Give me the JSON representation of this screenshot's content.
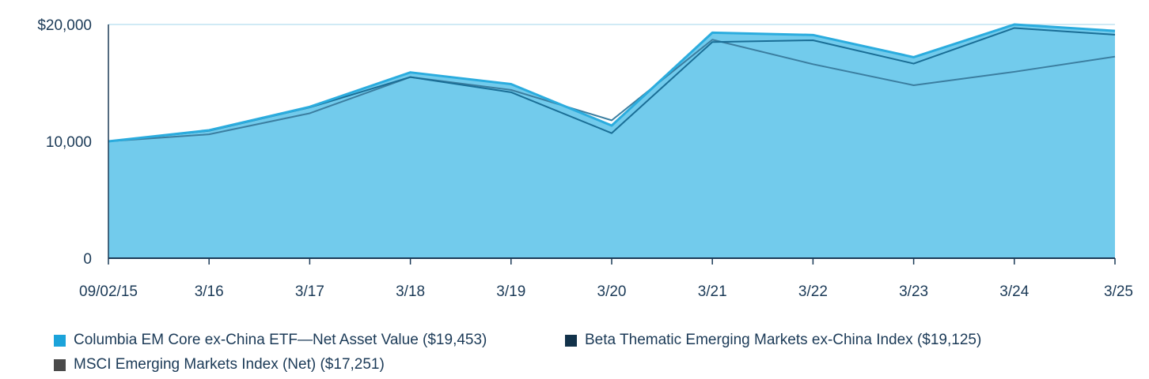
{
  "chart_data": {
    "type": "area",
    "categories": [
      "09/02/15",
      "3/16",
      "3/17",
      "3/18",
      "3/19",
      "3/20",
      "3/21",
      "3/22",
      "3/23",
      "3/24",
      "3/25"
    ],
    "y_tick_labels": [
      "0",
      "10,000",
      "$20,000"
    ],
    "y_ticks": [
      0,
      10000,
      20000
    ],
    "ylim": [
      0,
      20000
    ],
    "grid": "horizontal at 10,000 and 20,000",
    "legend_position": "bottom",
    "series": [
      {
        "name": "Columbia EM Core ex-China ETF—Net Asset Value ($19,453)",
        "values": [
          10000,
          10950,
          12950,
          15900,
          14900,
          11350,
          19300,
          19100,
          17200,
          20000,
          19453
        ],
        "color": "#2bacde",
        "fill": "#72cbec"
      },
      {
        "name": "Beta Thematic Emerging Markets ex-China Index ($19,125)",
        "values": [
          10000,
          10900,
          12900,
          15500,
          14200,
          10700,
          18500,
          18650,
          16650,
          19700,
          19125
        ],
        "color": "#1a6e96"
      },
      {
        "name": "MSCI Emerging Markets Index (Net) ($17,251)",
        "values": [
          10000,
          10600,
          12400,
          15500,
          14400,
          11800,
          18700,
          16600,
          14800,
          15950,
          17251
        ],
        "color": "#3b7ea0",
        "legend_color": "#4a4a4a"
      }
    ],
    "legend": [
      {
        "label": "Columbia EM Core ex-China ETF—Net Asset Value ($19,453)",
        "color": "#1ba3da"
      },
      {
        "label": "Beta Thematic Emerging Markets ex-China Index ($19,125)",
        "color": "#12324a"
      },
      {
        "label": "MSCI Emerging Markets Index (Net) ($17,251)",
        "color": "#4a4a4a"
      }
    ]
  }
}
